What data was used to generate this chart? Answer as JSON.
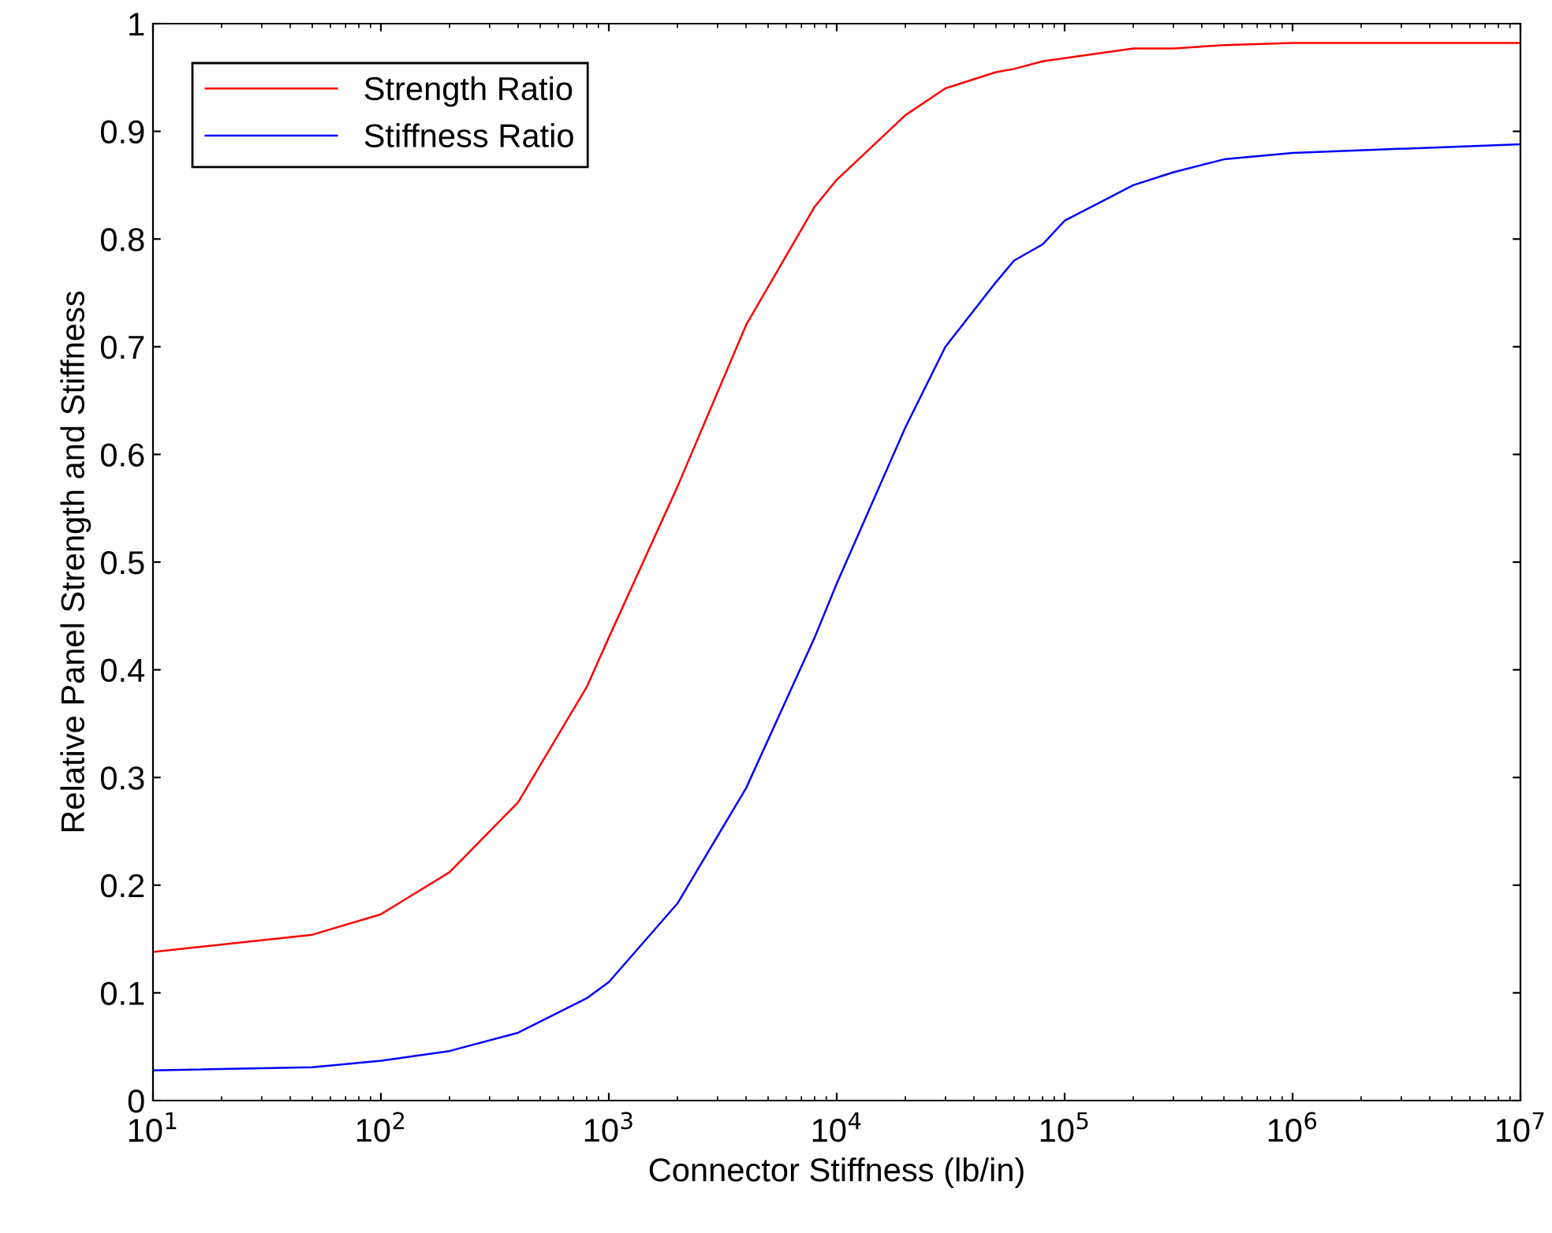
{
  "chart_data": {
    "type": "line",
    "xlabel": "Connector Stiffness (lb/in)",
    "ylabel": "Relative Panel Strength and Stiffness",
    "x": [
      10,
      50,
      100,
      200,
      400,
      800,
      1000,
      2000,
      4000,
      8000,
      10000,
      20000,
      30000,
      50000,
      60000,
      80000,
      100000,
      200000,
      300000,
      500000,
      1000000,
      10000000
    ],
    "series": [
      {
        "name": "Strength Ratio",
        "color": "#ff0000",
        "values": [
          0.138,
          0.154,
          0.173,
          0.212,
          0.277,
          0.384,
          0.43,
          0.57,
          0.72,
          0.83,
          0.855,
          0.915,
          0.94,
          0.955,
          0.958,
          0.965,
          0.968,
          0.977,
          0.977,
          0.98,
          0.982,
          0.982
        ]
      },
      {
        "name": "Stiffness Ratio",
        "color": "#0000ff",
        "values": [
          0.028,
          0.031,
          0.037,
          0.046,
          0.063,
          0.095,
          0.11,
          0.183,
          0.29,
          0.43,
          0.48,
          0.625,
          0.7,
          0.76,
          0.78,
          0.795,
          0.817,
          0.85,
          0.862,
          0.874,
          0.88,
          0.888
        ]
      }
    ],
    "log": "x",
    "xlim": [
      10,
      10000000
    ],
    "ylim": [
      0,
      1
    ],
    "xticks": [
      {
        "value": 10,
        "label": "10$^{1}$"
      },
      {
        "value": 100,
        "label": "10$^{2}$"
      },
      {
        "value": 1000,
        "label": "10$^{3}$"
      },
      {
        "value": 10000,
        "label": "10$^{4}$"
      },
      {
        "value": 100000,
        "label": "10$^{5}$"
      },
      {
        "value": 1000000,
        "label": "10$^{6}$"
      },
      {
        "value": 10000000,
        "label": "10$^{7}$"
      }
    ],
    "yticks": [
      0,
      0.1,
      0.2,
      0.3,
      0.4,
      0.5,
      0.6,
      0.7,
      0.8,
      0.9,
      1
    ],
    "grid": false,
    "legend": "top left",
    "line_style": "solid",
    "marker": "none"
  }
}
